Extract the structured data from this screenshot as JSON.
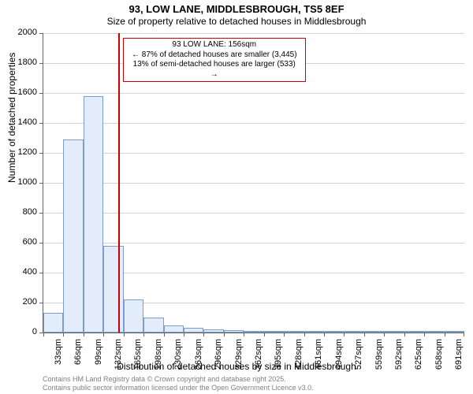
{
  "title_line1": "93, LOW LANE, MIDDLESBROUGH, TS5 8EF",
  "title_line2": "Size of property relative to detached houses in Middlesbrough",
  "ylabel": "Number of detached properties",
  "xlabel": "Distribution of detached houses by size in Middlesbrough",
  "chart": {
    "type": "histogram",
    "background_color": "#ffffff",
    "grid_color": "#d3d3d3",
    "axis_color": "#646464",
    "bar_fill": "#e2ecfa",
    "bar_border": "#7d9dcb",
    "marker_color": "#cc0000",
    "ylim": [
      0,
      2000
    ],
    "ytick_step": 200,
    "yticks": [
      0,
      200,
      400,
      600,
      800,
      1000,
      1200,
      1400,
      1600,
      1800,
      2000
    ],
    "x_categories": [
      "33sqm",
      "66sqm",
      "99sqm",
      "132sqm",
      "165sqm",
      "198sqm",
      "230sqm",
      "263sqm",
      "296sqm",
      "329sqm",
      "362sqm",
      "395sqm",
      "428sqm",
      "461sqm",
      "494sqm",
      "527sqm",
      "559sqm",
      "592sqm",
      "625sqm",
      "658sqm",
      "691sqm"
    ],
    "values": [
      130,
      1290,
      1580,
      580,
      220,
      100,
      50,
      30,
      20,
      15,
      5,
      3,
      3,
      2,
      2,
      2,
      1,
      1,
      1,
      1,
      1
    ],
    "marker_value_sqm": 156,
    "x_start": 33,
    "x_step": 33,
    "title_fontsize": 13,
    "subtitle_fontsize": 12,
    "label_fontsize": 12,
    "tick_fontsize": 11
  },
  "annotation": {
    "line1": "93 LOW LANE: 156sqm",
    "line2": "← 87% of detached houses are smaller (3,445)",
    "line3": "13% of semi-detached houses are larger (533) →"
  },
  "footer_line1": "Contains HM Land Registry data © Crown copyright and database right 2025.",
  "footer_line2": "Contains public sector information licensed under the Open Government Licence v3.0."
}
